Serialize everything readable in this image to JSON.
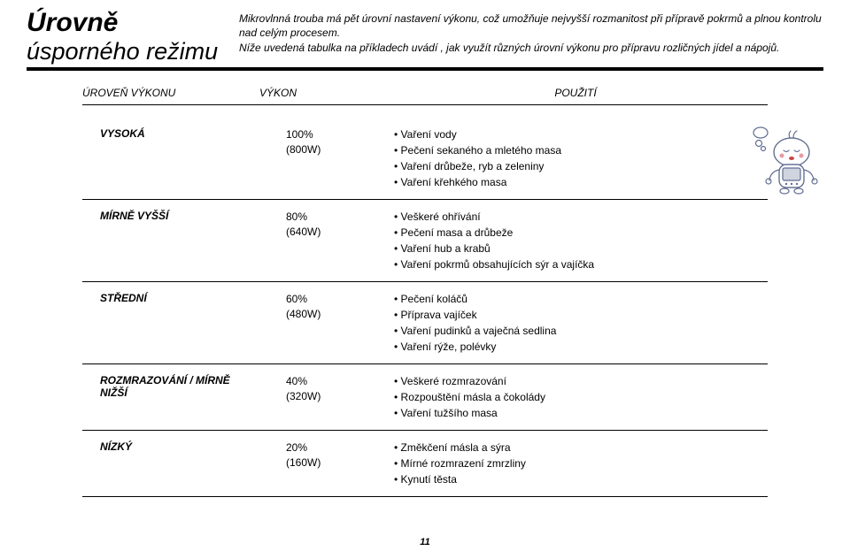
{
  "title": {
    "line1": "Úrovně",
    "line2": "úsporného režimu"
  },
  "intro": {
    "p1": "Mikrovlnná trouba má pět úrovní nastavení výkonu, což umožňuje nejvyšší rozmanitost při přípravě pokrmů a plnou kontrolu nad celým procesem.",
    "p2": "Níže uvedená tabulka na příkladech uvádí , jak využít různých úrovní výkonu pro přípravu rozličných jídel a nápojů."
  },
  "headers": {
    "level": "ÚROVEŇ VÝKONU",
    "power": "VÝKON",
    "use": "POUŽITÍ"
  },
  "rows": [
    {
      "level": "VYSOKÁ",
      "power_pct": "100%",
      "power_w": "(800W)",
      "uses": [
        "Vaření vody",
        "Pečení sekaného a mletého masa",
        "Vaření drůbeže, ryb a zeleniny",
        "Vaření křehkého masa"
      ]
    },
    {
      "level": "MÍRNĚ VYŠŠÍ",
      "power_pct": "80%",
      "power_w": "(640W)",
      "uses": [
        "Veškeré ohřívání",
        "Pečení masa a drůbeže",
        "Vaření hub a krabů",
        "Vaření pokrmů obsahujících sýr a vajíčka"
      ]
    },
    {
      "level": "STŘEDNÍ",
      "power_pct": "60%",
      "power_w": "(480W)",
      "uses": [
        "Pečení koláčů",
        "Příprava vajíček",
        "Vaření pudinků a vaječná sedlina",
        "Vaření rýže, polévky"
      ]
    },
    {
      "level": "ROZMRAZOVÁNÍ / MÍRNĚ NIŽŠÍ",
      "power_pct": "40%",
      "power_w": "(320W)",
      "uses": [
        "Veškeré rozmrazování",
        "Rozpouštění másla a čokolády",
        "Vaření tužšího masa"
      ]
    },
    {
      "level": "NÍZKÝ",
      "power_pct": "20%",
      "power_w": "(160W)",
      "uses": [
        "Změkčení másla a sýra",
        "Mírné rozmrazení zmrzliny",
        "Kynutí těsta"
      ]
    }
  ],
  "page_number": "11",
  "mascot_colors": {
    "stroke": "#626e91",
    "cheek": "#e79ba1",
    "mouth": "#c44",
    "shade": "#d0d4e0"
  }
}
